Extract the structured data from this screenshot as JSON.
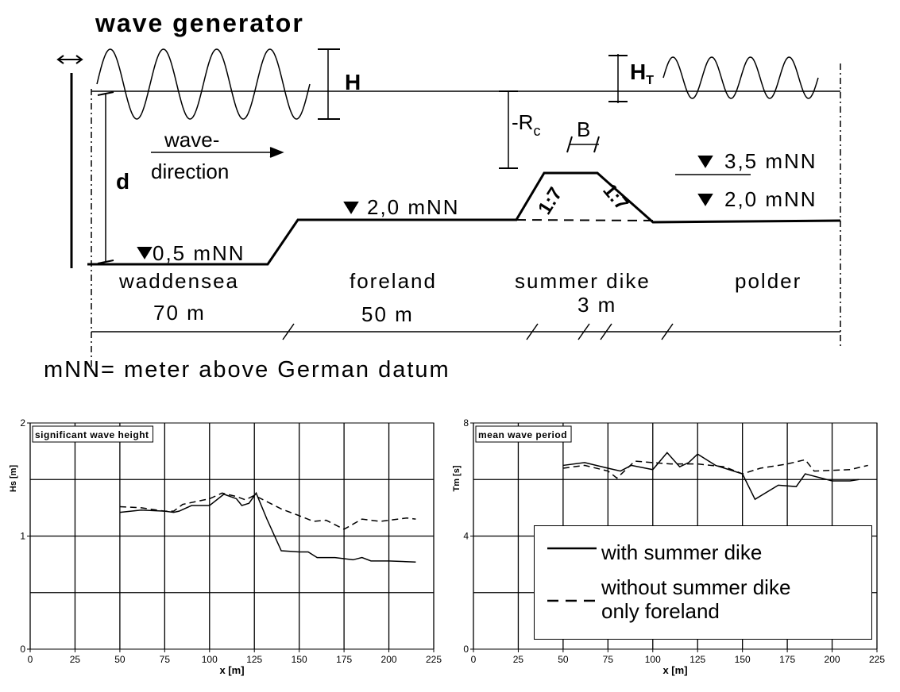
{
  "diagram": {
    "title": "wave generator",
    "h_label": "H",
    "ht_label": "H",
    "ht_sub": "T",
    "rc_label": "-R",
    "rc_sub": "c",
    "b_label": "B",
    "d_label": "d",
    "direction_1": "wave-",
    "direction_2": "direction",
    "level_waddensea": "0,5 mNN",
    "level_foreland": "2,0 mNN",
    "level_polder_high": "3,5 mNN",
    "level_polder": "2,0 mNN",
    "slope_1": "1:7",
    "slope_2": "1:7",
    "zones": [
      "waddensea",
      "foreland",
      "summer dike",
      "polder"
    ],
    "lengths": [
      "70 m",
      "50 m",
      "3 m"
    ],
    "note": "mNN= meter above German datum"
  },
  "chart_data": [
    {
      "type": "line",
      "title": "significant wave height",
      "xlabel": "x  [m]",
      "ylabel": "Hs [m]",
      "xlim": [
        0,
        225
      ],
      "xticks": [
        0,
        25,
        50,
        75,
        100,
        125,
        150,
        175,
        200,
        225
      ],
      "ylim": [
        0,
        2
      ],
      "yticks": [
        0,
        1,
        2
      ],
      "grid_y": [
        0.5,
        1,
        1.5
      ],
      "grid": true,
      "series": [
        {
          "color": "#000000",
          "dash": false,
          "x": [
            50,
            62,
            75,
            80,
            83,
            90,
            100,
            108,
            115,
            118,
            122,
            126,
            132,
            140,
            150,
            155,
            160,
            170,
            180,
            185,
            190,
            200,
            215
          ],
          "values": [
            1.21,
            1.23,
            1.22,
            1.21,
            1.22,
            1.27,
            1.27,
            1.37,
            1.33,
            1.27,
            1.29,
            1.38,
            1.15,
            0.87,
            0.86,
            0.86,
            0.81,
            0.81,
            0.79,
            0.81,
            0.78,
            0.78,
            0.77
          ]
        },
        {
          "color": "#000000",
          "dash": true,
          "x": [
            50,
            62,
            75,
            80,
            85,
            100,
            107,
            115,
            120,
            125,
            140,
            150,
            158,
            165,
            175,
            185,
            195,
            210,
            215
          ],
          "values": [
            1.26,
            1.25,
            1.22,
            1.22,
            1.28,
            1.33,
            1.38,
            1.35,
            1.32,
            1.36,
            1.24,
            1.18,
            1.13,
            1.14,
            1.06,
            1.15,
            1.13,
            1.16,
            1.15
          ]
        }
      ]
    },
    {
      "type": "line",
      "title": "mean wave period",
      "xlabel": "x  [m]",
      "ylabel": "Tm [s]",
      "xlim": [
        0,
        225
      ],
      "xticks": [
        0,
        25,
        50,
        75,
        100,
        125,
        150,
        175,
        200,
        225
      ],
      "ylim": [
        0,
        8
      ],
      "yticks": [
        0,
        4,
        8
      ],
      "grid_y": [
        2,
        4,
        6
      ],
      "grid": true,
      "series": [
        {
          "name": "with summer dike",
          "color": "#000000",
          "dash": false,
          "x": [
            50,
            62,
            75,
            82,
            88,
            100,
            108,
            115,
            120,
            125,
            135,
            150,
            157,
            170,
            180,
            185,
            200,
            210,
            215
          ],
          "values": [
            6.5,
            6.6,
            6.4,
            6.3,
            6.5,
            6.35,
            6.95,
            6.45,
            6.6,
            6.9,
            6.5,
            6.2,
            5.3,
            5.8,
            5.75,
            6.2,
            5.95,
            5.95,
            6.0
          ]
        },
        {
          "name": "without summer dike only foreland",
          "color": "#000000",
          "dash": true,
          "x": [
            50,
            62,
            75,
            80,
            90,
            100,
            110,
            125,
            140,
            150,
            160,
            175,
            185,
            190,
            210,
            220
          ],
          "values": [
            6.4,
            6.5,
            6.3,
            6.05,
            6.65,
            6.6,
            6.55,
            6.55,
            6.45,
            6.2,
            6.4,
            6.55,
            6.7,
            6.3,
            6.35,
            6.5
          ]
        }
      ]
    }
  ]
}
